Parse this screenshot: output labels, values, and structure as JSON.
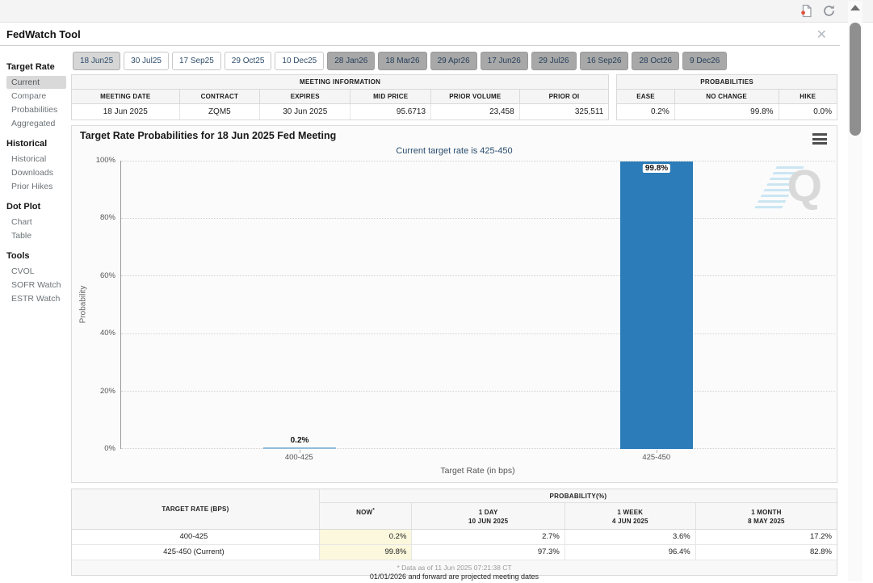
{
  "window": {
    "title": "FedWatch Tool",
    "close_label": "✕"
  },
  "colors": {
    "bar_blue": "#2b7cb9",
    "bar_light_blue": "#8fbcdb",
    "now_highlight": "#fbf8dd",
    "subtitle_blue": "#2a4d6e",
    "selected_tab_bg": "#d6d6d6",
    "dark_tab_bg": "#a8a8a8"
  },
  "icons": {
    "export": "document-with-red-dot",
    "refresh": "circular-arrows",
    "close": "x",
    "chart_menu": "hamburger",
    "scroll_up": "triangle-up",
    "watermark": "quikstrike-q"
  },
  "sidebar": {
    "sections": [
      {
        "header": "Target Rate",
        "items": [
          {
            "label": "Current",
            "class": "selected"
          },
          {
            "label": "Compare"
          },
          {
            "label": "Probabilities"
          },
          {
            "label": "Aggregated"
          }
        ]
      },
      {
        "header": "Historical",
        "items": [
          {
            "label": "Historical"
          },
          {
            "label": "Downloads"
          },
          {
            "label": "Prior Hikes"
          }
        ]
      },
      {
        "header": "Dot Plot",
        "items": [
          {
            "label": "Chart"
          },
          {
            "label": "Table"
          }
        ]
      },
      {
        "header": "Tools",
        "items": [
          {
            "label": "CVOL"
          },
          {
            "label": "SOFR Watch"
          },
          {
            "label": "ESTR Watch"
          }
        ]
      }
    ]
  },
  "tabs": [
    {
      "label": "18 Jun25",
      "class": "selected"
    },
    {
      "label": "30 Jul25"
    },
    {
      "label": "17 Sep25"
    },
    {
      "label": "29 Oct25"
    },
    {
      "label": "10 Dec25"
    },
    {
      "label": "28 Jan26",
      "class": "dark"
    },
    {
      "label": "18 Mar26",
      "class": "dark"
    },
    {
      "label": "29 Apr26",
      "class": "dark"
    },
    {
      "label": "17 Jun26",
      "class": "dark"
    },
    {
      "label": "29 Jul26",
      "class": "dark"
    },
    {
      "label": "16 Sep26",
      "class": "dark"
    },
    {
      "label": "28 Oct26",
      "class": "dark"
    },
    {
      "label": "9 Dec26",
      "class": "dark"
    }
  ],
  "meeting_info": {
    "title": "MEETING INFORMATION",
    "headers": [
      "MEETING DATE",
      "CONTRACT",
      "EXPIRES",
      "MID PRICE",
      "PRIOR VOLUME",
      "PRIOR OI"
    ],
    "values": [
      "18 Jun 2025",
      "ZQM5",
      "30 Jun 2025",
      "95.6713",
      "23,458",
      "325,511"
    ]
  },
  "probabilities_box": {
    "title": "PROBABILITIES",
    "headers": [
      "EASE",
      "NO CHANGE",
      "HIKE"
    ],
    "values": [
      "0.2%",
      "99.8%",
      "0.0%"
    ]
  },
  "chart_data": {
    "type": "bar",
    "title": "Target Rate Probabilities for 18 Jun 2025 Fed Meeting",
    "subtitle": "Current target rate is 425-450",
    "categories": [
      "400-425",
      "425-450"
    ],
    "values": [
      0.2,
      99.8
    ],
    "xlabel": "Target Rate (in bps)",
    "ylabel": "Probability",
    "ylim": [
      0,
      100
    ],
    "yticks": [
      "100%",
      "80%",
      "60%",
      "40%",
      "20%",
      "0%"
    ],
    "grid": "horizontal dotted",
    "bars": [
      {
        "category": "400-425",
        "value": 0.2,
        "label": "0.2%",
        "color": "#8fbcdb",
        "label_pos": "above"
      },
      {
        "category": "425-450",
        "value": 99.8,
        "label": "99.8%",
        "color": "#2b7cb9",
        "label_pos": "inside"
      }
    ]
  },
  "bottom_table": {
    "col1_header": "TARGET RATE (BPS)",
    "group_header": "PROBABILITY(%)",
    "sub_headers": [
      {
        "l1": "NOW",
        "sup": "*",
        "l2": ""
      },
      {
        "l1": "1 DAY",
        "l2": "10 JUN 2025"
      },
      {
        "l1": "1 WEEK",
        "l2": "4 JUN 2025"
      },
      {
        "l1": "1 MONTH",
        "l2": "8 MAY 2025"
      }
    ],
    "rows": [
      {
        "rate": "400-425",
        "now": "0.2%",
        "d1": "2.7%",
        "w1": "3.6%",
        "m1": "17.2%"
      },
      {
        "rate": "425-450 (Current)",
        "now": "99.8%",
        "d1": "97.3%",
        "w1": "96.4%",
        "m1": "82.8%"
      }
    ],
    "footnote": "* Data as of 11 Jun 2025 07:21:38 CT"
  },
  "footer_note": "01/01/2026 and forward are projected meeting dates"
}
